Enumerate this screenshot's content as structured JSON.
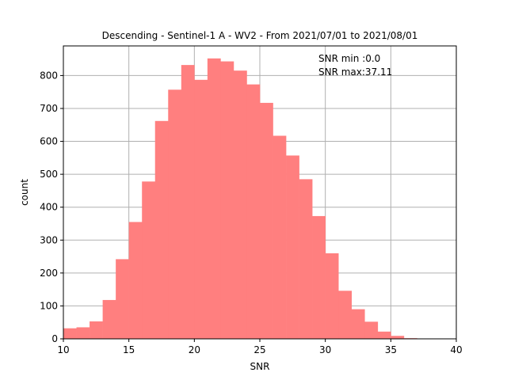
{
  "chart_data": {
    "type": "bar",
    "title": "Descending - Sentinel-1 A - WV2 - From 2021/07/01 to 2021/08/01",
    "xlabel": "SNR",
    "ylabel": "count",
    "xlim": [
      10,
      40
    ],
    "ylim": [
      0,
      890
    ],
    "xticks": [
      10,
      15,
      20,
      25,
      30,
      35,
      40
    ],
    "yticks": [
      0,
      100,
      200,
      300,
      400,
      500,
      600,
      700,
      800
    ],
    "grid": true,
    "bar_color": "#ff7f7f",
    "annotations": [
      "SNR min :0.0",
      "SNR max:37.11"
    ],
    "bins": [
      {
        "x0": 10.0,
        "x1": 11.0,
        "value": 32
      },
      {
        "x0": 11.0,
        "x1": 12.0,
        "value": 35
      },
      {
        "x0": 12.0,
        "x1": 13.0,
        "value": 53
      },
      {
        "x0": 13.0,
        "x1": 14.0,
        "value": 118
      },
      {
        "x0": 14.0,
        "x1": 15.0,
        "value": 242
      },
      {
        "x0": 15.0,
        "x1": 16.0,
        "value": 355
      },
      {
        "x0": 16.0,
        "x1": 17.0,
        "value": 478
      },
      {
        "x0": 17.0,
        "x1": 18.0,
        "value": 662
      },
      {
        "x0": 18.0,
        "x1": 19.0,
        "value": 757
      },
      {
        "x0": 19.0,
        "x1": 20.0,
        "value": 832
      },
      {
        "x0": 20.0,
        "x1": 21.0,
        "value": 787
      },
      {
        "x0": 21.0,
        "x1": 22.0,
        "value": 852
      },
      {
        "x0": 22.0,
        "x1": 23.0,
        "value": 843
      },
      {
        "x0": 23.0,
        "x1": 24.0,
        "value": 815
      },
      {
        "x0": 24.0,
        "x1": 25.0,
        "value": 773
      },
      {
        "x0": 25.0,
        "x1": 26.0,
        "value": 717
      },
      {
        "x0": 26.0,
        "x1": 27.0,
        "value": 617
      },
      {
        "x0": 27.0,
        "x1": 28.0,
        "value": 557
      },
      {
        "x0": 28.0,
        "x1": 29.0,
        "value": 485
      },
      {
        "x0": 29.0,
        "x1": 30.0,
        "value": 373
      },
      {
        "x0": 30.0,
        "x1": 31.0,
        "value": 260
      },
      {
        "x0": 31.0,
        "x1": 32.0,
        "value": 146
      },
      {
        "x0": 32.0,
        "x1": 33.0,
        "value": 90
      },
      {
        "x0": 33.0,
        "x1": 34.0,
        "value": 52
      },
      {
        "x0": 34.0,
        "x1": 35.0,
        "value": 22
      },
      {
        "x0": 35.0,
        "x1": 36.0,
        "value": 9
      },
      {
        "x0": 36.0,
        "x1": 37.0,
        "value": 2
      },
      {
        "x0": 37.0,
        "x1": 38.0,
        "value": 1
      }
    ]
  }
}
